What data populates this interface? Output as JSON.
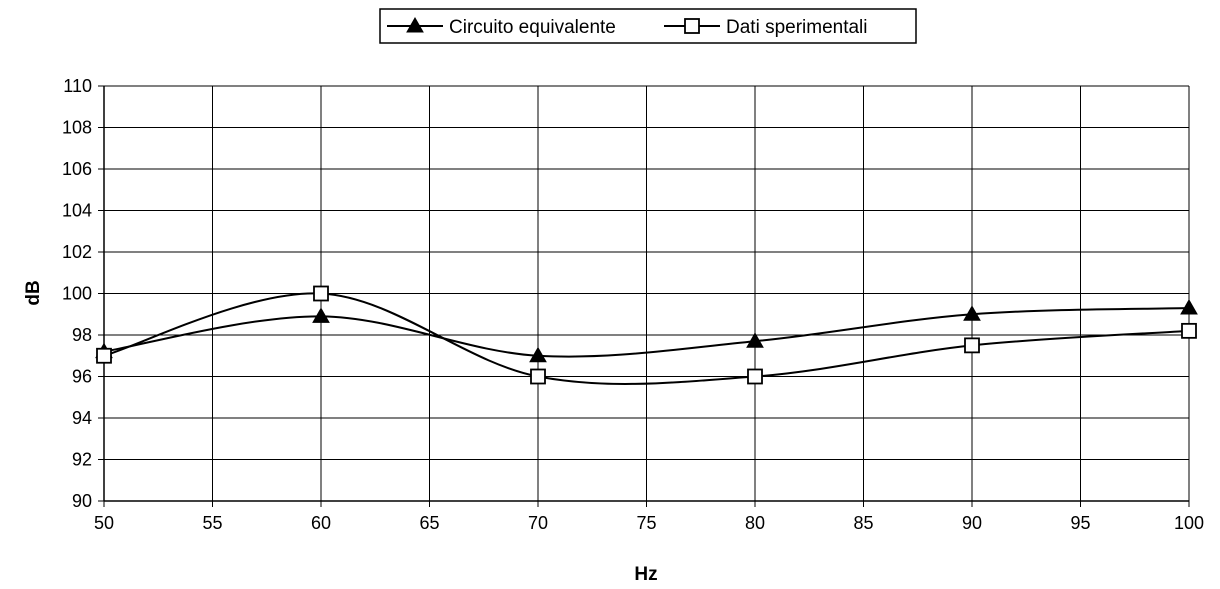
{
  "chart_data": {
    "type": "line",
    "title": "",
    "xlabel": "Hz",
    "ylabel": "dB",
    "xlim": [
      50,
      100
    ],
    "ylim": [
      90,
      110
    ],
    "x_ticks": [
      50,
      55,
      60,
      65,
      70,
      75,
      80,
      85,
      90,
      95,
      100
    ],
    "y_ticks": [
      90,
      92,
      94,
      96,
      98,
      100,
      102,
      104,
      106,
      108,
      110
    ],
    "grid": true,
    "smooth": true,
    "legend_position": "top-center",
    "series": [
      {
        "name": "Circuito equivalente",
        "marker": "filled-triangle",
        "color": "#000000",
        "x": [
          50,
          60,
          70,
          80,
          90,
          100
        ],
        "y": [
          97.2,
          98.9,
          97.0,
          97.7,
          99.0,
          99.3
        ]
      },
      {
        "name": "Dati sperimentali",
        "marker": "open-square",
        "color": "#000000",
        "x": [
          50,
          60,
          70,
          80,
          90,
          100
        ],
        "y": [
          97.0,
          100.0,
          96.0,
          96.0,
          97.5,
          98.2
        ]
      }
    ]
  }
}
